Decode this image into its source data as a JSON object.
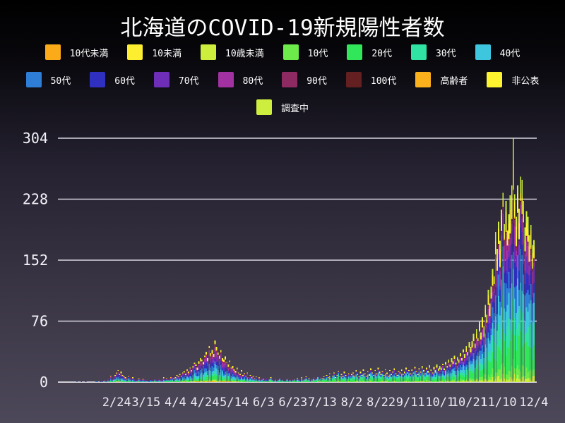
{
  "chart_data": {
    "type": "bar",
    "stacked": true,
    "title": "北海道のCOVID-19新規陽性者数",
    "ylim": [
      0,
      304
    ],
    "y_ticks": [
      0,
      76,
      152,
      228,
      304
    ],
    "grid": true,
    "legend_position": "top",
    "x_start_date": "1/28",
    "x_end_date": "12/4",
    "x_ticks": [
      {
        "day": 27,
        "label": "2/24"
      },
      {
        "day": 47,
        "label": "3/15"
      },
      {
        "day": 67,
        "label": "4/4"
      },
      {
        "day": 87,
        "label": "4/24"
      },
      {
        "day": 107,
        "label": "5/14"
      },
      {
        "day": 127,
        "label": "6/3"
      },
      {
        "day": 147,
        "label": "6/23"
      },
      {
        "day": 167,
        "label": "7/13"
      },
      {
        "day": 187,
        "label": "8/2"
      },
      {
        "day": 207,
        "label": "8/22"
      },
      {
        "day": 227,
        "label": "9/11"
      },
      {
        "day": 247,
        "label": "10/1"
      },
      {
        "day": 267,
        "label": "10/21"
      },
      {
        "day": 287,
        "label": "11/10"
      },
      {
        "day": 311,
        "label": "12/4"
      }
    ],
    "series": [
      {
        "name": "10代未満",
        "color": "#fbab18"
      },
      {
        "name": "10未満",
        "color": "#fdee30"
      },
      {
        "name": "10歳未満",
        "color": "#cdee3c"
      },
      {
        "name": "10代",
        "color": "#6ceb4a"
      },
      {
        "name": "20代",
        "color": "#32e659"
      },
      {
        "name": "30代",
        "color": "#31e3a3"
      },
      {
        "name": "40代",
        "color": "#3ec6de"
      },
      {
        "name": "50代",
        "color": "#2e7ed8"
      },
      {
        "name": "60代",
        "color": "#2f2fc0"
      },
      {
        "name": "70代",
        "color": "#6f2eb8"
      },
      {
        "name": "80代",
        "color": "#a231a2"
      },
      {
        "name": "90代",
        "color": "#8e2a62"
      },
      {
        "name": "100代",
        "color": "#642020"
      },
      {
        "name": "高齢者",
        "color": "#fbb11c"
      },
      {
        "name": "非公表",
        "color": "#fdf32f"
      },
      {
        "name": "調査中",
        "color": "#cdee3e"
      }
    ],
    "peak": {
      "date": "11/20",
      "value": 304
    },
    "daily_totals": [
      1,
      0,
      0,
      1,
      0,
      0,
      1,
      0,
      0,
      0,
      0,
      0,
      0,
      1,
      1,
      0,
      1,
      1,
      0,
      2,
      1,
      4,
      2,
      8,
      3,
      6,
      9,
      12,
      15,
      10,
      13,
      9,
      7,
      6,
      4,
      8,
      5,
      2,
      6,
      3,
      4,
      2,
      5,
      3,
      2,
      4,
      3,
      2,
      3,
      1,
      4,
      2,
      3,
      5,
      2,
      3,
      4,
      2,
      3,
      6,
      4,
      5,
      3,
      4,
      6,
      7,
      5,
      6,
      9,
      7,
      10,
      8,
      12,
      14,
      10,
      16,
      13,
      18,
      15,
      20,
      24,
      22,
      18,
      26,
      30,
      28,
      25,
      33,
      38,
      30,
      45,
      36,
      40,
      35,
      52,
      44,
      37,
      33,
      40,
      30,
      28,
      32,
      25,
      22,
      27,
      18,
      20,
      16,
      14,
      18,
      12,
      10,
      15,
      9,
      11,
      8,
      12,
      7,
      9,
      6,
      8,
      5,
      7,
      4,
      6,
      3,
      5,
      4,
      3,
      5,
      2,
      4,
      6,
      3,
      2,
      4,
      1,
      3,
      5,
      2,
      3,
      1,
      2,
      4,
      2,
      3,
      2,
      3,
      4,
      2,
      5,
      3,
      2,
      6,
      3,
      4,
      7,
      3,
      5,
      2,
      4,
      6,
      3,
      5,
      8,
      4,
      6,
      5,
      7,
      4,
      9,
      6,
      11,
      5,
      8,
      12,
      6,
      9,
      14,
      7,
      10,
      8,
      13,
      9,
      6,
      11,
      8,
      10,
      12,
      8,
      15,
      10,
      7,
      13,
      9,
      16,
      11,
      8,
      14,
      10,
      17,
      12,
      9,
      15,
      11,
      18,
      13,
      10,
      14,
      9,
      16,
      12,
      8,
      15,
      10,
      13,
      17,
      11,
      9,
      14,
      12,
      16,
      10,
      13,
      18,
      12,
      15,
      11,
      16,
      12,
      19,
      14,
      10,
      17,
      13,
      20,
      15,
      11,
      18,
      14,
      21,
      16,
      12,
      19,
      15,
      22,
      17,
      20,
      18,
      23,
      17,
      25,
      20,
      28,
      22,
      30,
      26,
      33,
      24,
      31,
      28,
      36,
      30,
      41,
      35,
      45,
      38,
      50,
      44,
      51,
      60,
      48,
      66,
      55,
      75,
      62,
      81,
      70,
      96,
      84,
      115,
      98,
      119,
      141,
      132,
      187,
      166,
      200,
      176,
      215,
      236,
      197,
      226,
      189,
      209,
      233,
      245,
      304,
      234,
      206,
      245,
      216,
      256,
      252,
      226,
      193,
      213,
      206,
      183,
      196,
      171,
      177
    ],
    "stack_profiles": {
      "spring": [
        0.02,
        0.01,
        0.01,
        0.03,
        0.08,
        0.09,
        0.12,
        0.13,
        0.12,
        0.12,
        0.1,
        0.05,
        0.01,
        0.02,
        0.08,
        0.01
      ],
      "summer": [
        0,
        0,
        0.04,
        0.06,
        0.24,
        0.15,
        0.12,
        0.1,
        0.07,
        0.06,
        0.04,
        0.02,
        0,
        0,
        0.08,
        0.02
      ],
      "winter": [
        0,
        0,
        0.03,
        0.05,
        0.14,
        0.13,
        0.12,
        0.11,
        0.09,
        0.08,
        0.07,
        0.03,
        0.005,
        0.005,
        0.08,
        0.06
      ]
    },
    "profile_breaks": [
      {
        "until": 129,
        "profile": "spring"
      },
      {
        "until": 239,
        "profile": "summer"
      },
      {
        "until": 311,
        "profile": "winter"
      }
    ]
  },
  "legend": {
    "rows": [
      [
        0,
        1,
        2,
        3,
        4,
        5,
        6
      ],
      [
        7,
        8,
        9,
        10,
        11,
        12,
        13,
        14
      ],
      [
        15
      ]
    ]
  },
  "colors": {
    "background_top": "#000000",
    "background_bottom": "#4d4859",
    "gridline": "#d6d5dd",
    "zero_line": "#ffffff",
    "y_label_text": "#f4f3f8",
    "x_label_text": "#eae9f0",
    "title_text": "#ffffff"
  }
}
